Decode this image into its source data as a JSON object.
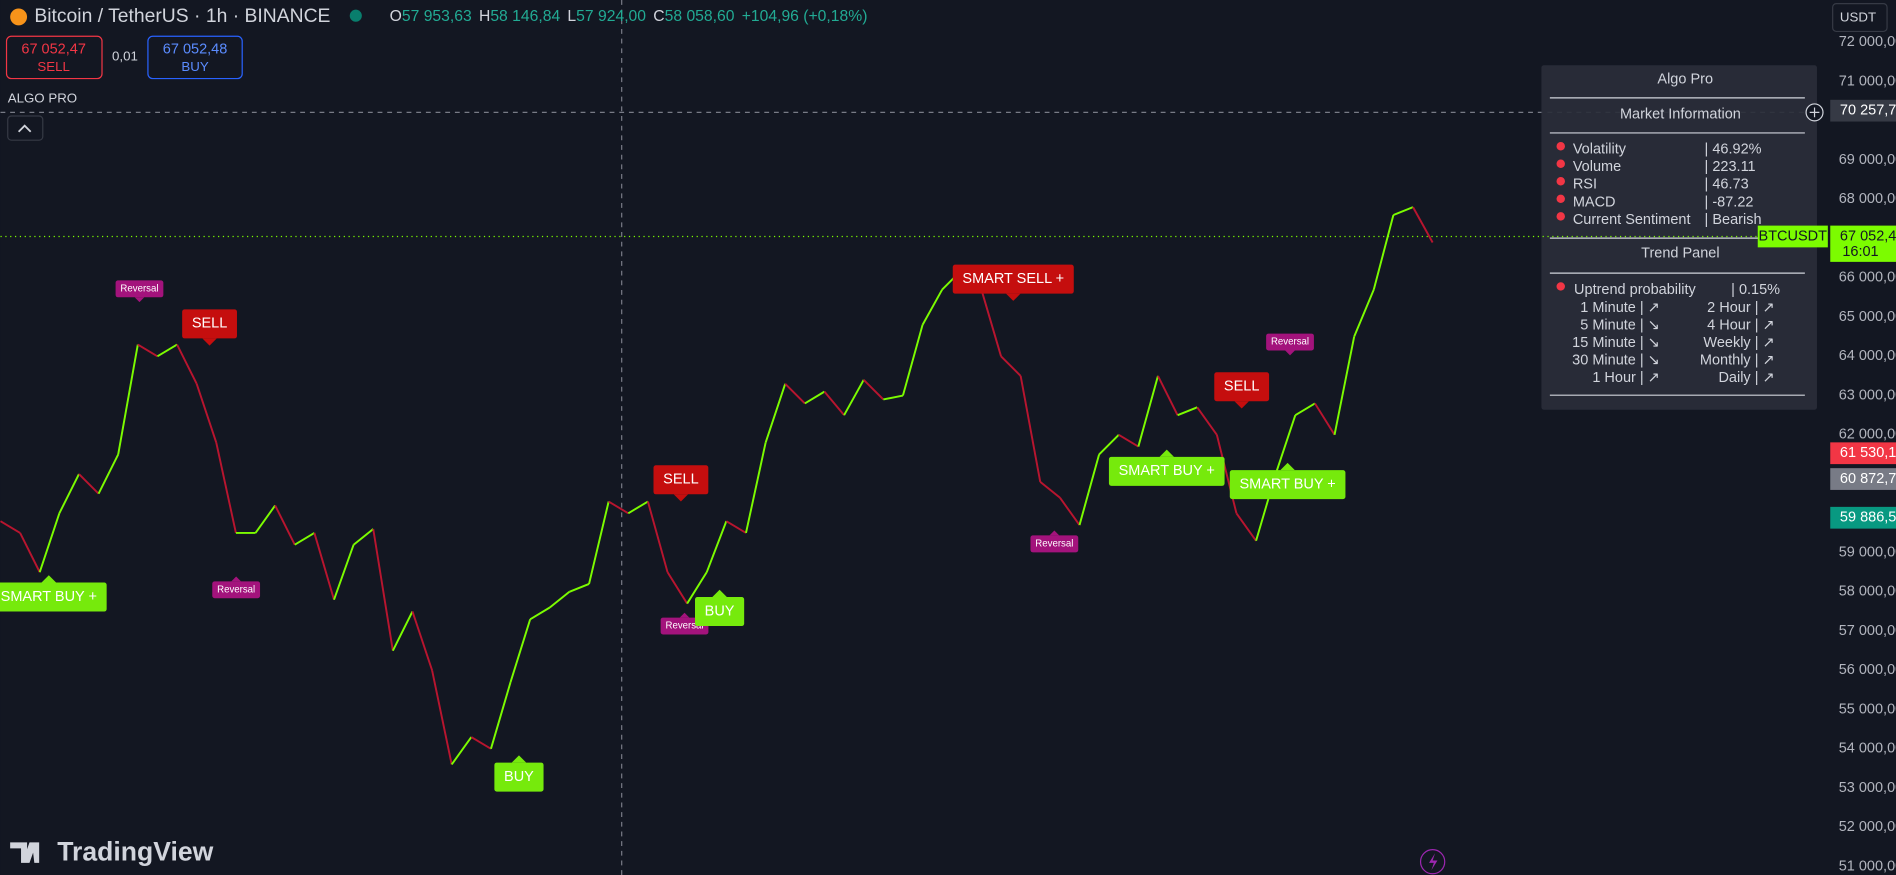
{
  "header": {
    "symbol": "Bitcoin / TetherUS · 1h · BINANCE",
    "ohlc": [
      {
        "label": "O",
        "value": "57 953,63"
      },
      {
        "label": "H",
        "value": "58 146,84"
      },
      {
        "label": "L",
        "value": "57 924,00"
      },
      {
        "label": "C",
        "value": "58 058,60"
      }
    ],
    "change": "+104,96 (+0,18%)",
    "currency": "USDT"
  },
  "trade": {
    "sell_price": "67 052,47",
    "sell": "SELL",
    "spread": "0,01",
    "buy_price": "67 052,48",
    "buy": "BUY"
  },
  "indicator": "ALGO PRO",
  "logo": "TradingView",
  "chart_data": {
    "type": "line",
    "color": "#7cfc00",
    "down_color": "#b8152f",
    "values": [
      59800,
      59500,
      58500,
      60000,
      61000,
      60500,
      61500,
      64300,
      64000,
      64300,
      63300,
      61800,
      59500,
      59500,
      60200,
      59200,
      59500,
      57800,
      59200,
      59600,
      56500,
      57500,
      56000,
      53600,
      54300,
      54000,
      55700,
      57300,
      57600,
      58000,
      58200,
      60300,
      60000,
      60300,
      58500,
      57700,
      58500,
      59800,
      59500,
      61800,
      63300,
      62800,
      63100,
      62500,
      63400,
      62900,
      63000,
      64800,
      65700,
      66200,
      65700,
      64000,
      63500,
      60800,
      60400,
      59700,
      61500,
      62000,
      61700,
      63500,
      62500,
      62700,
      62000,
      60000,
      59300,
      61000,
      62500,
      62800,
      62000,
      64500,
      65700,
      67600,
      67800,
      66900
    ],
    "ylim": [
      51000,
      72000
    ],
    "yticks": [
      {
        "value": 72000,
        "label": "72 000,00"
      },
      {
        "value": 71000,
        "label": "71 000,00"
      },
      {
        "value": 69000,
        "label": "69 000,00"
      },
      {
        "value": 68000,
        "label": "68 000,00"
      },
      {
        "value": 66000,
        "label": "66 000,00"
      },
      {
        "value": 65000,
        "label": "65 000,00"
      },
      {
        "value": 64000,
        "label": "64 000,00"
      },
      {
        "value": 63000,
        "label": "63 000,00"
      },
      {
        "value": 62000,
        "label": "62 000,00"
      },
      {
        "value": 59000,
        "label": "59 000,00"
      },
      {
        "value": 58000,
        "label": "58 000,00"
      },
      {
        "value": 57000,
        "label": "57 000,00"
      },
      {
        "value": 56000,
        "label": "56 000,00"
      },
      {
        "value": 55000,
        "label": "55 000,00"
      },
      {
        "value": 54000,
        "label": "54 000,00"
      },
      {
        "value": 53000,
        "label": "53 000,00"
      },
      {
        "value": 52000,
        "label": "52 000,00"
      },
      {
        "value": 51000,
        "label": "51 000,00"
      }
    ],
    "markers": [
      {
        "value": 70257.7,
        "label": "70 257,7",
        "color": "#363a45"
      },
      {
        "value": 67052.4,
        "label": "67 052,4",
        "color": "#7cfc00",
        "symbol": "BTCUSDT",
        "time": "16:01"
      },
      {
        "value": 61530.1,
        "label": "61 530,1",
        "color": "#f23645"
      },
      {
        "value": 60872.7,
        "label": "60 872,7",
        "color": "#787b86"
      },
      {
        "value": 59886.5,
        "label": "59 886,5",
        "color": "#089981"
      }
    ],
    "signals": [
      "Reversal",
      "SELL",
      "SMART BUY +",
      "Reversal",
      "SELL",
      "Reversal",
      "BUY",
      "BUY",
      "SMART SELL +",
      "Reversal",
      "SMART BUY +",
      "SELL",
      "Reversal",
      "SMART BUY +"
    ]
  },
  "panel": {
    "title": "Algo Pro",
    "market_title": "Market Information",
    "market": [
      [
        "Volatility",
        "| 46.92%"
      ],
      [
        "Volume",
        "| 223.11"
      ],
      [
        "RSI",
        "| 46.73"
      ],
      [
        "MACD",
        "| -87.22"
      ],
      [
        "Current Sentiment",
        "| Bearish"
      ]
    ],
    "trend_title": "Trend Panel",
    "uptrend": [
      "Uptrend probability",
      "| 0.15%"
    ],
    "trend": [
      [
        "1 Minute | ↗",
        "2 Hour | ↗"
      ],
      [
        "5 Minute | ↘",
        "4 Hour | ↗"
      ],
      [
        "15 Minute | ↘",
        "Weekly | ↗"
      ],
      [
        "30 Minute | ↘",
        "Monthly | ↗"
      ],
      [
        "1 Hour | ↗",
        "Daily | ↗"
      ]
    ]
  }
}
